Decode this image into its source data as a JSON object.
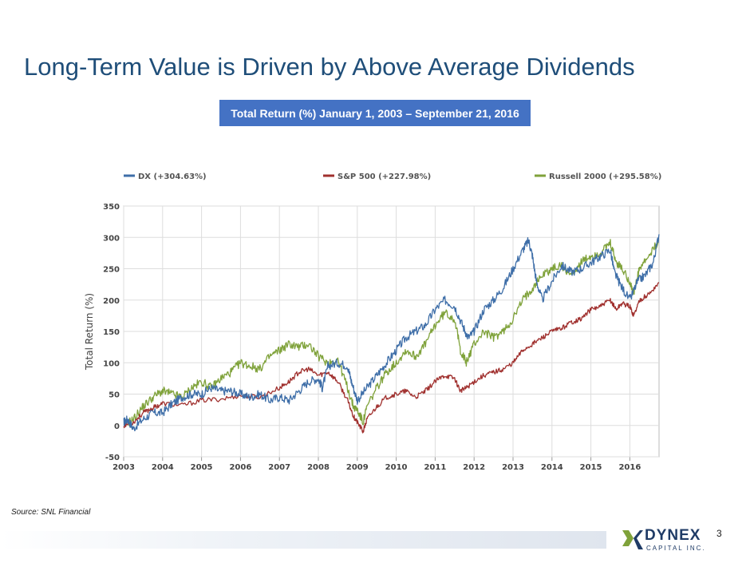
{
  "slide": {
    "title": "Long-Term Value is Driven by Above Average Dividends",
    "subtitle": "Total Return (%) January 1, 2003 – September 21, 2016",
    "source": "Source: SNL Financial",
    "page_number": "3",
    "logo": {
      "name": "DYNEX",
      "subtitle": "CAPITAL INC."
    }
  },
  "colors": {
    "title": "#1f4e79",
    "subtitle_box": "#4472c4",
    "dx": "#3e6ea8",
    "sp500": "#a0302e",
    "russell": "#7fa23a"
  },
  "chart_data": {
    "type": "line",
    "title": "Total Return (%) January 1, 2003 – September 21, 2016",
    "xlabel": "",
    "ylabel": "Total Return (%)",
    "xlim": [
      2003,
      2016.75
    ],
    "ylim": [
      -50,
      350
    ],
    "x_ticks": [
      2003,
      2004,
      2005,
      2006,
      2007,
      2008,
      2009,
      2010,
      2011,
      2012,
      2013,
      2014,
      2015,
      2016
    ],
    "y_ticks": [
      -50,
      0,
      50,
      100,
      150,
      200,
      250,
      300,
      350
    ],
    "grid": true,
    "legend_position": "top",
    "series": [
      {
        "name": "DX (+304.63%)",
        "color": "#3e6ea8",
        "x": [
          2003.0,
          2003.1,
          2003.25,
          2003.5,
          2003.75,
          2004.0,
          2004.25,
          2004.5,
          2004.75,
          2005.0,
          2005.25,
          2005.5,
          2005.75,
          2006.0,
          2006.25,
          2006.5,
          2006.75,
          2007.0,
          2007.25,
          2007.5,
          2007.75,
          2008.0,
          2008.1,
          2008.25,
          2008.5,
          2008.75,
          2008.85,
          2009.0,
          2009.25,
          2009.5,
          2009.75,
          2010.0,
          2010.25,
          2010.5,
          2010.75,
          2011.0,
          2011.25,
          2011.5,
          2011.7,
          2011.85,
          2012.0,
          2012.25,
          2012.5,
          2012.75,
          2013.0,
          2013.25,
          2013.4,
          2013.5,
          2013.6,
          2013.75,
          2014.0,
          2014.25,
          2014.5,
          2014.75,
          2015.0,
          2015.25,
          2015.5,
          2015.6,
          2015.75,
          2016.0,
          2016.2,
          2016.4,
          2016.6,
          2016.75
        ],
        "values": [
          5,
          10,
          -5,
          10,
          20,
          20,
          35,
          45,
          50,
          50,
          60,
          55,
          55,
          50,
          45,
          50,
          40,
          45,
          40,
          55,
          70,
          75,
          60,
          95,
          100,
          95,
          70,
          40,
          60,
          80,
          100,
          120,
          140,
          150,
          160,
          185,
          200,
          190,
          160,
          140,
          150,
          185,
          200,
          220,
          250,
          280,
          295,
          270,
          230,
          200,
          230,
          255,
          245,
          250,
          260,
          270,
          280,
          245,
          225,
          200,
          230,
          240,
          260,
          305
        ]
      },
      {
        "name": "S&P 500 (+227.98%)",
        "color": "#a0302e",
        "x": [
          2003.0,
          2003.25,
          2003.5,
          2003.75,
          2004.0,
          2004.5,
          2005.0,
          2005.5,
          2006.0,
          2006.5,
          2007.0,
          2007.25,
          2007.5,
          2007.75,
          2008.0,
          2008.25,
          2008.5,
          2008.75,
          2008.9,
          2009.0,
          2009.15,
          2009.25,
          2009.5,
          2009.75,
          2010.0,
          2010.25,
          2010.5,
          2010.75,
          2011.0,
          2011.25,
          2011.5,
          2011.65,
          2011.8,
          2012.0,
          2012.25,
          2012.5,
          2012.75,
          2013.0,
          2013.25,
          2013.5,
          2013.75,
          2014.0,
          2014.25,
          2014.5,
          2014.75,
          2015.0,
          2015.25,
          2015.5,
          2015.65,
          2015.8,
          2016.0,
          2016.1,
          2016.25,
          2016.5,
          2016.75
        ],
        "values": [
          0,
          5,
          20,
          28,
          35,
          32,
          40,
          42,
          48,
          45,
          60,
          70,
          85,
          90,
          80,
          85,
          70,
          40,
          15,
          5,
          -10,
          10,
          30,
          45,
          50,
          55,
          45,
          55,
          70,
          80,
          75,
          55,
          60,
          70,
          80,
          85,
          90,
          100,
          120,
          130,
          140,
          150,
          155,
          165,
          170,
          185,
          190,
          200,
          185,
          195,
          190,
          175,
          200,
          210,
          228
        ]
      },
      {
        "name": "Russell 2000 (+295.58%)",
        "color": "#7fa23a",
        "x": [
          2003.0,
          2003.25,
          2003.5,
          2003.75,
          2004.0,
          2004.25,
          2004.5,
          2004.75,
          2005.0,
          2005.25,
          2005.5,
          2005.75,
          2006.0,
          2006.25,
          2006.5,
          2006.75,
          2007.0,
          2007.25,
          2007.5,
          2007.75,
          2008.0,
          2008.25,
          2008.5,
          2008.75,
          2008.9,
          2009.0,
          2009.15,
          2009.25,
          2009.5,
          2009.75,
          2010.0,
          2010.25,
          2010.5,
          2010.75,
          2011.0,
          2011.25,
          2011.5,
          2011.65,
          2011.8,
          2012.0,
          2012.25,
          2012.5,
          2012.75,
          2013.0,
          2013.25,
          2013.5,
          2013.75,
          2014.0,
          2014.25,
          2014.5,
          2014.75,
          2015.0,
          2015.25,
          2015.5,
          2015.65,
          2015.8,
          2016.0,
          2016.1,
          2016.25,
          2016.5,
          2016.75
        ],
        "values": [
          0,
          10,
          30,
          45,
          55,
          50,
          45,
          60,
          70,
          60,
          75,
          85,
          100,
          95,
          90,
          110,
          120,
          130,
          125,
          130,
          110,
          100,
          105,
          60,
          30,
          25,
          5,
          30,
          60,
          85,
          100,
          120,
          110,
          130,
          160,
          180,
          170,
          120,
          100,
          130,
          150,
          140,
          150,
          170,
          200,
          220,
          240,
          250,
          255,
          240,
          260,
          270,
          275,
          290,
          260,
          250,
          230,
          210,
          250,
          270,
          295
        ]
      }
    ]
  }
}
